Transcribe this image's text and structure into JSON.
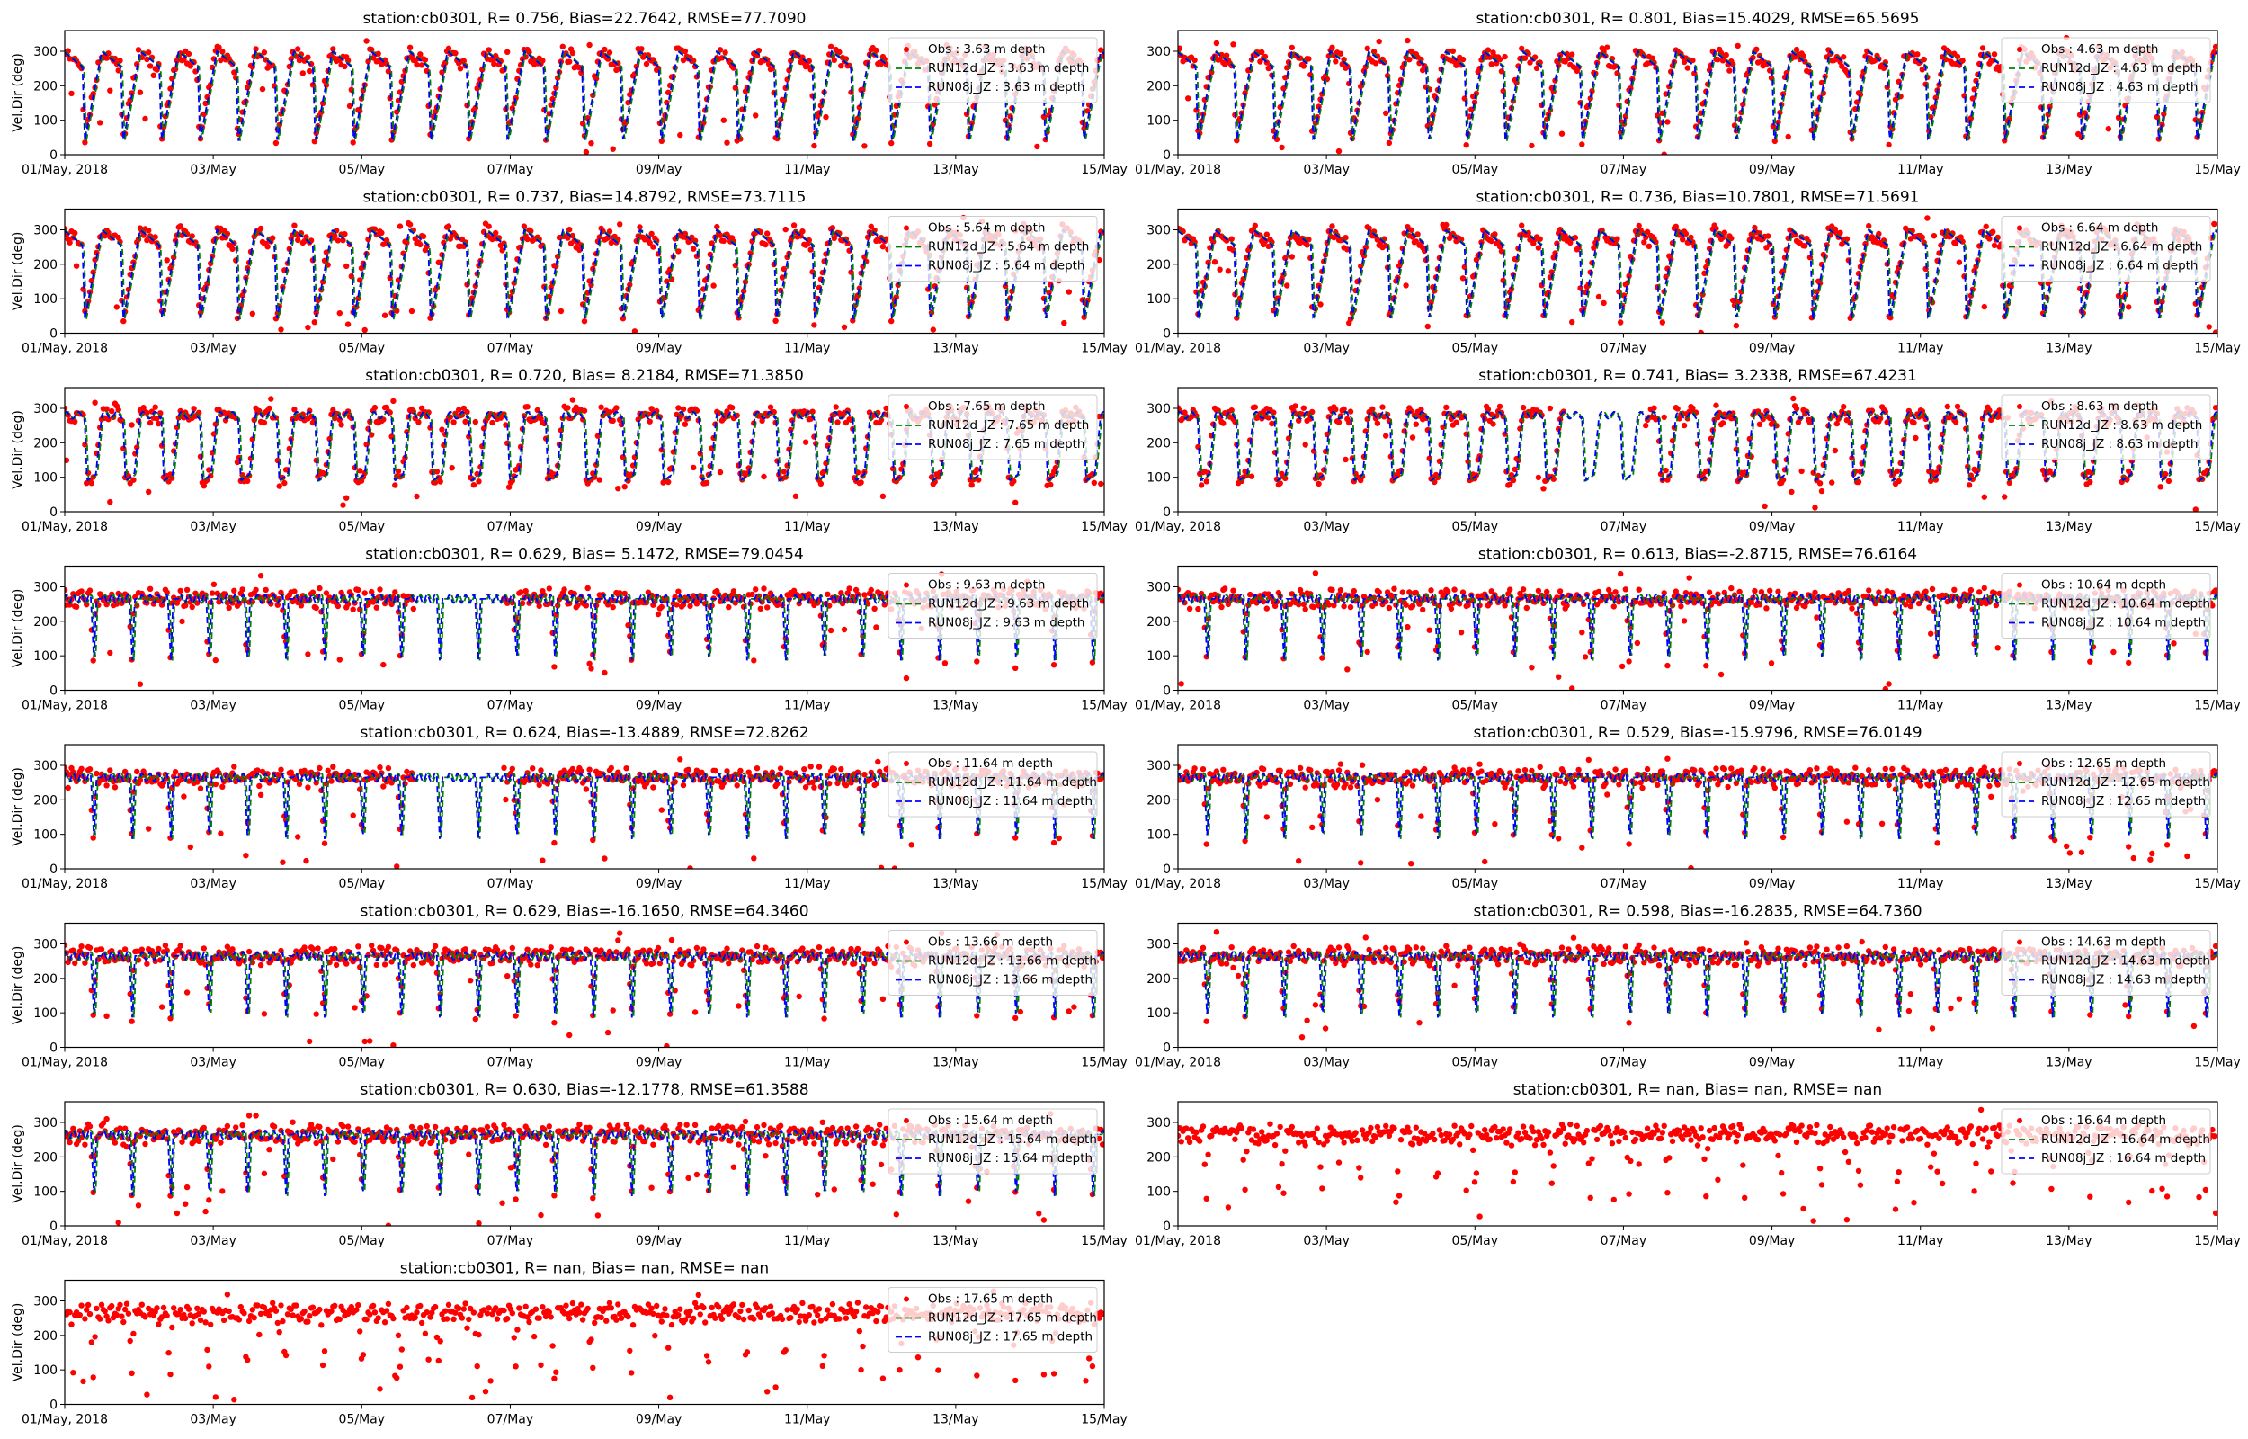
{
  "figure": {
    "background": "#ffffff"
  },
  "styles": {
    "obs_color": "#ff0000",
    "run12d_color": "#008000",
    "run08j_color": "#0000ff",
    "axis_color": "#000000",
    "legend_border": "#cccccc"
  },
  "chart_data": [
    {
      "type": "scatter+line",
      "title": "station:cb0301, R= 0.756, Bias=22.7642, RMSE=77.7090",
      "ylabel": "Vel.Dir (deg)",
      "ylim": [
        0,
        360
      ],
      "yticks": [
        0,
        100,
        200,
        300
      ],
      "xticks": [
        "01/May, 2018",
        "03/May",
        "05/May",
        "07/May",
        "09/May",
        "11/May",
        "13/May",
        "15/May"
      ],
      "x_range_days": [
        0,
        14
      ],
      "pattern": "rotating",
      "depth": "3.63",
      "legend": [
        "Obs : 3.63 m depth",
        "RUN12d_JZ : 3.63 m depth",
        "RUN08j_JZ : 3.63 m depth"
      ],
      "series": [
        {
          "name": "Obs : 3.63 m depth",
          "style": "points"
        },
        {
          "name": "RUN12d_JZ : 3.63 m depth",
          "style": "dashed"
        },
        {
          "name": "RUN08j_JZ : 3.63 m depth",
          "style": "dashed"
        }
      ]
    },
    {
      "type": "scatter+line",
      "title": "station:cb0301, R= 0.801, Bias=15.4029, RMSE=65.5695",
      "ylabel": "",
      "ylim": [
        0,
        360
      ],
      "yticks": [
        0,
        100,
        200,
        300
      ],
      "xticks": [
        "01/May, 2018",
        "03/May",
        "05/May",
        "07/May",
        "09/May",
        "11/May",
        "13/May",
        "15/May"
      ],
      "x_range_days": [
        0,
        14
      ],
      "pattern": "rotating",
      "depth": "4.63",
      "legend": [
        "Obs : 4.63 m depth",
        "RUN12d_JZ : 4.63 m depth",
        "RUN08j_JZ : 4.63 m depth"
      ],
      "series": [
        {
          "name": "Obs : 4.63 m depth",
          "style": "points"
        },
        {
          "name": "RUN12d_JZ : 4.63 m depth",
          "style": "dashed"
        },
        {
          "name": "RUN08j_JZ : 4.63 m depth",
          "style": "dashed"
        }
      ]
    },
    {
      "type": "scatter+line",
      "title": "station:cb0301, R= 0.737, Bias=14.8792, RMSE=73.7115",
      "ylabel": "Vel.Dir (deg)",
      "ylim": [
        0,
        360
      ],
      "yticks": [
        0,
        100,
        200,
        300
      ],
      "xticks": [
        "01/May, 2018",
        "03/May",
        "05/May",
        "07/May",
        "09/May",
        "11/May",
        "13/May",
        "15/May"
      ],
      "x_range_days": [
        0,
        14
      ],
      "pattern": "rotating",
      "depth": "5.64",
      "legend": [
        "Obs : 5.64 m depth",
        "RUN12d_JZ : 5.64 m depth",
        "RUN08j_JZ : 5.64 m depth"
      ],
      "series": [
        {
          "name": "Obs : 5.64 m depth",
          "style": "points"
        },
        {
          "name": "RUN12d_JZ : 5.64 m depth",
          "style": "dashed"
        },
        {
          "name": "RUN08j_JZ : 5.64 m depth",
          "style": "dashed"
        }
      ]
    },
    {
      "type": "scatter+line",
      "title": "station:cb0301, R= 0.736, Bias=10.7801, RMSE=71.5691",
      "ylabel": "",
      "ylim": [
        0,
        360
      ],
      "yticks": [
        0,
        100,
        200,
        300
      ],
      "xticks": [
        "01/May, 2018",
        "03/May",
        "05/May",
        "07/May",
        "09/May",
        "11/May",
        "13/May",
        "15/May"
      ],
      "x_range_days": [
        0,
        14
      ],
      "pattern": "rotating",
      "depth": "6.64",
      "legend": [
        "Obs : 6.64 m depth",
        "RUN12d_JZ : 6.64 m depth",
        "RUN08j_JZ : 6.64 m depth"
      ],
      "series": [
        {
          "name": "Obs : 6.64 m depth",
          "style": "points"
        },
        {
          "name": "RUN12d_JZ : 6.64 m depth",
          "style": "dashed"
        },
        {
          "name": "RUN08j_JZ : 6.64 m depth",
          "style": "dashed"
        }
      ]
    },
    {
      "type": "scatter+line",
      "title": "station:cb0301, R= 0.720, Bias= 8.2184, RMSE=71.3850",
      "ylabel": "Vel.Dir (deg)",
      "ylim": [
        0,
        360
      ],
      "yticks": [
        0,
        100,
        200,
        300
      ],
      "xticks": [
        "01/May, 2018",
        "03/May",
        "05/May",
        "07/May",
        "09/May",
        "11/May",
        "13/May",
        "15/May"
      ],
      "x_range_days": [
        0,
        14
      ],
      "pattern": "mixed",
      "depth": "7.65",
      "legend": [
        "Obs : 7.65 m depth",
        "RUN12d_JZ : 7.65 m depth",
        "RUN08j_JZ : 7.65 m depth"
      ],
      "series": [
        {
          "name": "Obs : 7.65 m depth",
          "style": "points"
        },
        {
          "name": "RUN12d_JZ : 7.65 m depth",
          "style": "dashed"
        },
        {
          "name": "RUN08j_JZ : 7.65 m depth",
          "style": "dashed"
        }
      ]
    },
    {
      "type": "scatter+line",
      "title": "station:cb0301, R= 0.741, Bias= 3.2338, RMSE=67.4231",
      "ylabel": "",
      "ylim": [
        0,
        360
      ],
      "yticks": [
        0,
        100,
        200,
        300
      ],
      "xticks": [
        "01/May, 2018",
        "03/May",
        "05/May",
        "07/May",
        "09/May",
        "11/May",
        "13/May",
        "15/May"
      ],
      "x_range_days": [
        0,
        14
      ],
      "pattern": "mixed",
      "depth": "8.63",
      "legend": [
        "Obs : 8.63 m depth",
        "RUN12d_JZ : 8.63 m depth",
        "RUN08j_JZ : 8.63 m depth"
      ],
      "series": [
        {
          "name": "Obs : 8.63 m depth",
          "style": "points"
        },
        {
          "name": "RUN12d_JZ : 8.63 m depth",
          "style": "dashed"
        },
        {
          "name": "RUN08j_JZ : 8.63 m depth",
          "style": "dashed"
        }
      ]
    },
    {
      "type": "scatter+line",
      "title": "station:cb0301, R= 0.629, Bias= 5.1472, RMSE=79.0454",
      "ylabel": "Vel.Dir (deg)",
      "ylim": [
        0,
        360
      ],
      "yticks": [
        0,
        100,
        200,
        300
      ],
      "xticks": [
        "01/May, 2018",
        "03/May",
        "05/May",
        "07/May",
        "09/May",
        "11/May",
        "13/May",
        "15/May"
      ],
      "x_range_days": [
        0,
        14
      ],
      "pattern": "dips",
      "depth": "9.63",
      "legend": [
        "Obs : 9.63 m depth",
        "RUN12d_JZ : 9.63 m depth",
        "RUN08j_JZ : 9.63 m depth"
      ],
      "series": [
        {
          "name": "Obs : 9.63 m depth",
          "style": "points"
        },
        {
          "name": "RUN12d_JZ : 9.63 m depth",
          "style": "dashed"
        },
        {
          "name": "RUN08j_JZ : 9.63 m depth",
          "style": "dashed"
        }
      ]
    },
    {
      "type": "scatter+line",
      "title": "station:cb0301, R= 0.613, Bias=-2.8715, RMSE=76.6164",
      "ylabel": "",
      "ylim": [
        0,
        360
      ],
      "yticks": [
        0,
        100,
        200,
        300
      ],
      "xticks": [
        "01/May, 2018",
        "03/May",
        "05/May",
        "07/May",
        "09/May",
        "11/May",
        "13/May",
        "15/May"
      ],
      "x_range_days": [
        0,
        14
      ],
      "pattern": "dips",
      "depth": "10.64",
      "legend": [
        "Obs : 10.64 m depth",
        "RUN12d_JZ : 10.64 m depth",
        "RUN08j_JZ : 10.64 m depth"
      ],
      "series": [
        {
          "name": "Obs : 10.64 m depth",
          "style": "points"
        },
        {
          "name": "RUN12d_JZ : 10.64 m depth",
          "style": "dashed"
        },
        {
          "name": "RUN08j_JZ : 10.64 m depth",
          "style": "dashed"
        }
      ]
    },
    {
      "type": "scatter+line",
      "title": "station:cb0301, R= 0.624, Bias=-13.4889, RMSE=72.8262",
      "ylabel": "Vel.Dir (deg)",
      "ylim": [
        0,
        360
      ],
      "yticks": [
        0,
        100,
        200,
        300
      ],
      "xticks": [
        "01/May, 2018",
        "03/May",
        "05/May",
        "07/May",
        "09/May",
        "11/May",
        "13/May",
        "15/May"
      ],
      "x_range_days": [
        0,
        14
      ],
      "pattern": "dips",
      "depth": "11.64",
      "legend": [
        "Obs : 11.64 m depth",
        "RUN12d_JZ : 11.64 m depth",
        "RUN08j_JZ : 11.64 m depth"
      ],
      "series": [
        {
          "name": "Obs : 11.64 m depth",
          "style": "points"
        },
        {
          "name": "RUN12d_JZ : 11.64 m depth",
          "style": "dashed"
        },
        {
          "name": "RUN08j_JZ : 11.64 m depth",
          "style": "dashed"
        }
      ]
    },
    {
      "type": "scatter+line",
      "title": "station:cb0301, R= 0.529, Bias=-15.9796, RMSE=76.0149",
      "ylabel": "",
      "ylim": [
        0,
        360
      ],
      "yticks": [
        0,
        100,
        200,
        300
      ],
      "xticks": [
        "01/May, 2018",
        "03/May",
        "05/May",
        "07/May",
        "09/May",
        "11/May",
        "13/May",
        "15/May"
      ],
      "x_range_days": [
        0,
        14
      ],
      "pattern": "dips",
      "depth": "12.65",
      "legend": [
        "Obs : 12.65 m depth",
        "RUN12d_JZ : 12.65 m depth",
        "RUN08j_JZ : 12.65 m depth"
      ],
      "series": [
        {
          "name": "Obs : 12.65 m depth",
          "style": "points"
        },
        {
          "name": "RUN12d_JZ : 12.65 m depth",
          "style": "dashed"
        },
        {
          "name": "RUN08j_JZ : 12.65 m depth",
          "style": "dashed"
        }
      ]
    },
    {
      "type": "scatter+line",
      "title": "station:cb0301, R= 0.629, Bias=-16.1650, RMSE=64.3460",
      "ylabel": "Vel.Dir (deg)",
      "ylim": [
        0,
        360
      ],
      "yticks": [
        0,
        100,
        200,
        300
      ],
      "xticks": [
        "01/May, 2018",
        "03/May",
        "05/May",
        "07/May",
        "09/May",
        "11/May",
        "13/May",
        "15/May"
      ],
      "x_range_days": [
        0,
        14
      ],
      "pattern": "dips",
      "depth": "13.66",
      "legend": [
        "Obs : 13.66 m depth",
        "RUN12d_JZ : 13.66 m depth",
        "RUN08j_JZ : 13.66 m depth"
      ],
      "series": [
        {
          "name": "Obs : 13.66 m depth",
          "style": "points"
        },
        {
          "name": "RUN12d_JZ : 13.66 m depth",
          "style": "dashed"
        },
        {
          "name": "RUN08j_JZ : 13.66 m depth",
          "style": "dashed"
        }
      ]
    },
    {
      "type": "scatter+line",
      "title": "station:cb0301, R= 0.598, Bias=-16.2835, RMSE=64.7360",
      "ylabel": "",
      "ylim": [
        0,
        360
      ],
      "yticks": [
        0,
        100,
        200,
        300
      ],
      "xticks": [
        "01/May, 2018",
        "03/May",
        "05/May",
        "07/May",
        "09/May",
        "11/May",
        "13/May",
        "15/May"
      ],
      "x_range_days": [
        0,
        14
      ],
      "pattern": "dips",
      "depth": "14.63",
      "legend": [
        "Obs : 14.63 m depth",
        "RUN12d_JZ : 14.63 m depth",
        "RUN08j_JZ : 14.63 m depth"
      ],
      "series": [
        {
          "name": "Obs : 14.63 m depth",
          "style": "points"
        },
        {
          "name": "RUN12d_JZ : 14.63 m depth",
          "style": "dashed"
        },
        {
          "name": "RUN08j_JZ : 14.63 m depth",
          "style": "dashed"
        }
      ]
    },
    {
      "type": "scatter+line",
      "title": "station:cb0301, R= 0.630, Bias=-12.1778, RMSE=61.3588",
      "ylabel": "Vel.Dir (deg)",
      "ylim": [
        0,
        360
      ],
      "yticks": [
        0,
        100,
        200,
        300
      ],
      "xticks": [
        "01/May, 2018",
        "03/May",
        "05/May",
        "07/May",
        "09/May",
        "11/May",
        "13/May",
        "15/May"
      ],
      "x_range_days": [
        0,
        14
      ],
      "pattern": "dips",
      "depth": "15.64",
      "legend": [
        "Obs : 15.64 m depth",
        "RUN12d_JZ : 15.64 m depth",
        "RUN08j_JZ : 15.64 m depth"
      ],
      "series": [
        {
          "name": "Obs : 15.64 m depth",
          "style": "points"
        },
        {
          "name": "RUN12d_JZ : 15.64 m depth",
          "style": "dashed"
        },
        {
          "name": "RUN08j_JZ : 15.64 m depth",
          "style": "dashed"
        }
      ]
    },
    {
      "type": "scatter+line",
      "title": "station:cb0301, R=   nan, Bias=    nan, RMSE=    nan",
      "ylabel": "",
      "ylim": [
        0,
        360
      ],
      "yticks": [
        0,
        100,
        200,
        300
      ],
      "xticks": [
        "01/May, 2018",
        "03/May",
        "05/May",
        "07/May",
        "09/May",
        "11/May",
        "13/May",
        "15/May"
      ],
      "x_range_days": [
        0,
        14
      ],
      "pattern": "obsonly",
      "depth": "16.64",
      "legend": [
        "Obs : 16.64 m depth",
        "RUN12d_JZ : 16.64 m depth",
        "RUN08j_JZ : 16.64 m depth"
      ],
      "series": [
        {
          "name": "Obs : 16.64 m depth",
          "style": "points"
        }
      ]
    },
    {
      "type": "scatter+line",
      "title": "station:cb0301, R=   nan, Bias=    nan, RMSE=    nan",
      "ylabel": "Vel.Dir (deg)",
      "ylim": [
        0,
        360
      ],
      "yticks": [
        0,
        100,
        200,
        300
      ],
      "xticks": [
        "01/May, 2018",
        "03/May",
        "05/May",
        "07/May",
        "09/May",
        "11/May",
        "13/May",
        "15/May"
      ],
      "x_range_days": [
        0,
        14
      ],
      "pattern": "obsonly",
      "depth": "17.65",
      "legend": [
        "Obs : 17.65 m depth",
        "RUN12d_JZ : 17.65 m depth",
        "RUN08j_JZ : 17.65 m depth"
      ],
      "series": [
        {
          "name": "Obs : 17.65 m depth",
          "style": "points"
        }
      ]
    }
  ]
}
